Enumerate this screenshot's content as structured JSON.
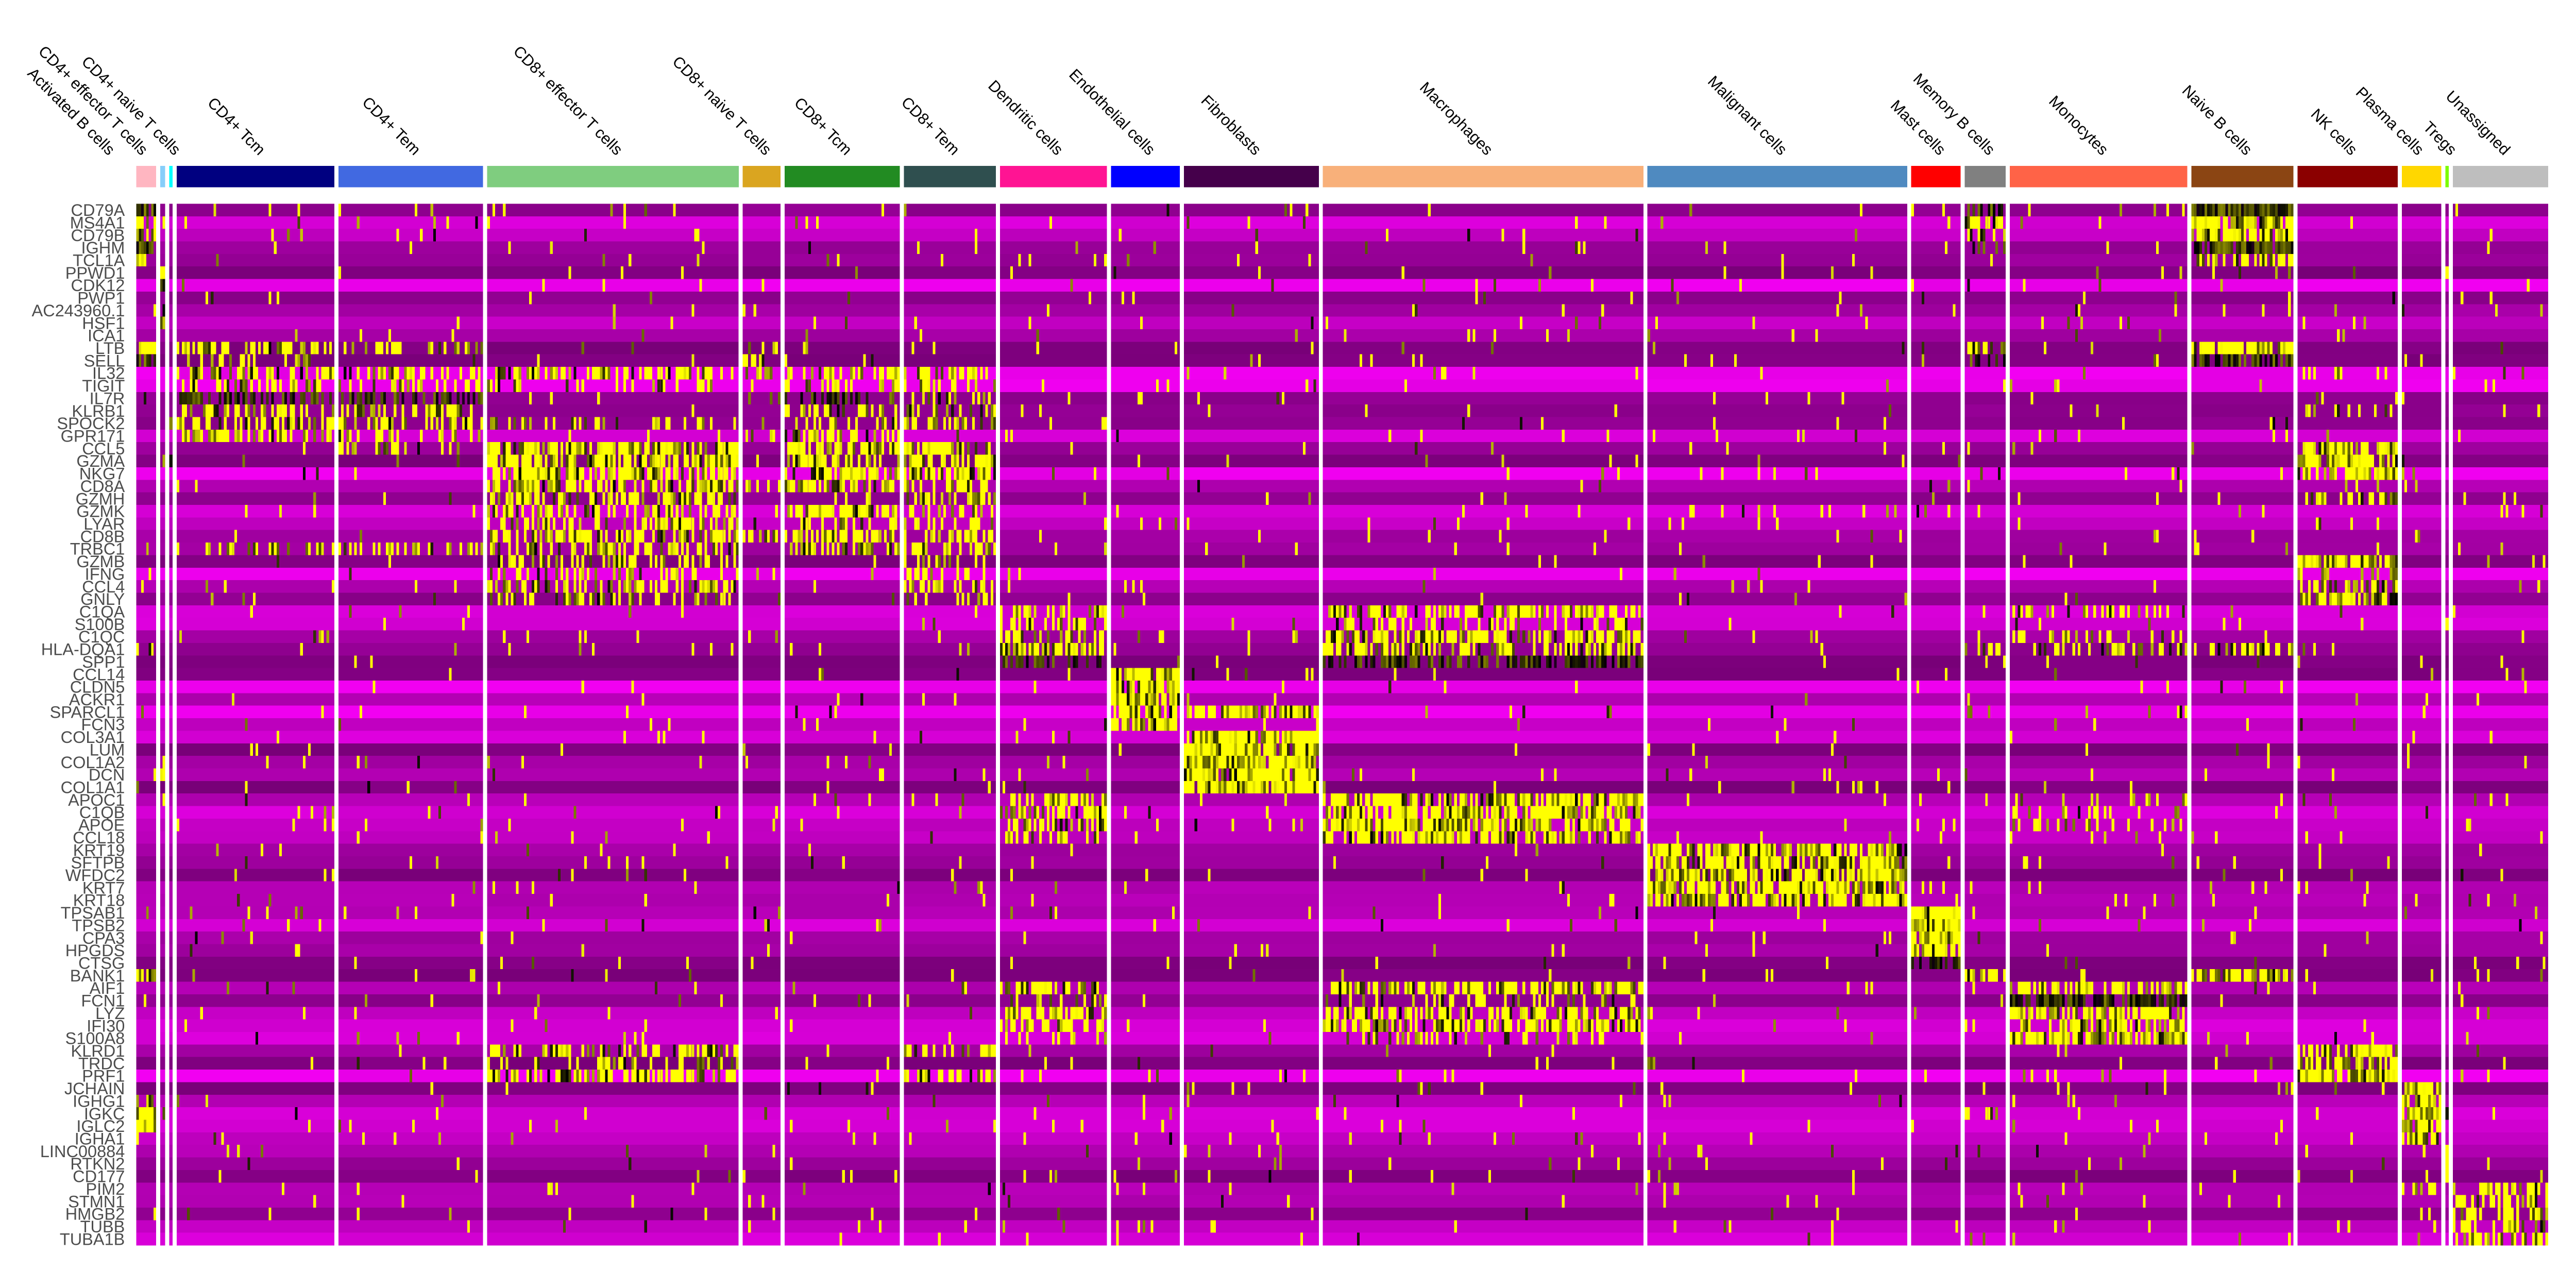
{
  "chart_data": {
    "type": "heatmap",
    "title": "",
    "color_scale": {
      "low": "#FF00FF",
      "mid": "#000000",
      "high": "#FFFF00",
      "range": [
        -2.5,
        2.5
      ]
    },
    "groups": [
      {
        "name": "Activated B cells",
        "color": "#FFB6C1",
        "relative_size": 12
      },
      {
        "name": "CD4+ effector T cells",
        "color": "#87CEFA",
        "relative_size": 3
      },
      {
        "name": "CD4+ naive T cells",
        "color": "#00FFFF",
        "relative_size": 2
      },
      {
        "name": "CD4+ Tcm",
        "color": "#000080",
        "relative_size": 96
      },
      {
        "name": "CD4+ Tem",
        "color": "#4169E1",
        "relative_size": 88
      },
      {
        "name": "CD8+ effector T cells",
        "color": "#7FCD7F",
        "relative_size": 153
      },
      {
        "name": "CD8+ naive T cells",
        "color": "#DAA520",
        "relative_size": 23
      },
      {
        "name": "CD8+ Tcm",
        "color": "#228B22",
        "relative_size": 70
      },
      {
        "name": "CD8+ Tem",
        "color": "#2F4F4F",
        "relative_size": 56
      },
      {
        "name": "Dendritic cells",
        "color": "#FF1493",
        "relative_size": 65
      },
      {
        "name": "Endothelial cells",
        "color": "#0000FF",
        "relative_size": 42
      },
      {
        "name": "Fibroblasts",
        "color": "#45004B",
        "relative_size": 82
      },
      {
        "name": "Macrophages",
        "color": "#F8B07A",
        "relative_size": 195
      },
      {
        "name": "Malignant cells",
        "color": "#4F8AC0",
        "relative_size": 158
      },
      {
        "name": "Mast cells",
        "color": "#FF0000",
        "relative_size": 30
      },
      {
        "name": "Memory B cells",
        "color": "#808080",
        "relative_size": 25
      },
      {
        "name": "Monocytes",
        "color": "#FF6347",
        "relative_size": 108
      },
      {
        "name": "Naive B cells",
        "color": "#8B4513",
        "relative_size": 62
      },
      {
        "name": "NK cells",
        "color": "#8B0000",
        "relative_size": 61
      },
      {
        "name": "Plasma cells",
        "color": "#FFD700",
        "relative_size": 24
      },
      {
        "name": "Tregs",
        "color": "#7CFC00",
        "relative_size": 2
      },
      {
        "name": "Unassigned",
        "color": "#BEBEBE",
        "relative_size": 58
      }
    ],
    "genes": [
      "CD79A",
      "MS4A1",
      "CD79B",
      "IGHM",
      "TCL1A",
      "PPWD1",
      "CDK12",
      "PWP1",
      "AC243960.1",
      "HSF1",
      "ICA1",
      "LTB",
      "SELL",
      "IL32",
      "TIGIT",
      "IL7R",
      "KLRB1",
      "SPOCK2",
      "GPR171",
      "CCL5",
      "GZMA",
      "NKG7",
      "CD8A",
      "GZMH",
      "GZMK",
      "LYAR",
      "CD8B",
      "TRBC1",
      "GZMB",
      "IFNG",
      "CCL4",
      "GNLY",
      "C1QA",
      "S100B",
      "C1QC",
      "HLA-DQA1",
      "SPP1",
      "CCL14",
      "CLDN5",
      "ACKR1",
      "SPARCL1",
      "FCN3",
      "COL3A1",
      "LUM",
      "COL1A2",
      "DCN",
      "COL1A1",
      "APOC1",
      "C1QB",
      "APOE",
      "CCL18",
      "KRT19",
      "SFTPB",
      "WFDC2",
      "KRT7",
      "KRT18",
      "TPSAB1",
      "TPSB2",
      "CPA3",
      "HPGDS",
      "CTSG",
      "BANK1",
      "AIF1",
      "FCN1",
      "LYZ",
      "IFI30",
      "S100A8",
      "KLRD1",
      "TRDC",
      "PRF1",
      "JCHAIN",
      "IGHG1",
      "IGKC",
      "IGLC2",
      "IGHA1",
      "LINC00884",
      "RTKN2",
      "CD177",
      "PIM2",
      "STMN1",
      "HMGB2",
      "TUBB",
      "TUBA1B"
    ],
    "high_expression_fraction": {
      "CD79A": {
        "Activated B cells": 0.9,
        "Memory B cells": 0.7,
        "Naive B cells": 0.9
      },
      "MS4A1": {
        "Activated B cells": 0.9,
        "Memory B cells": 0.7,
        "Naive B cells": 0.9
      },
      "CD79B": {
        "Activated B cells": 0.9,
        "Memory B cells": 0.6,
        "Naive B cells": 0.85
      },
      "IGHM": {
        "Activated B cells": 0.85,
        "Memory B cells": 0.5,
        "Naive B cells": 0.85
      },
      "TCL1A": {
        "Activated B cells": 0.7,
        "Naive B cells": 0.6
      },
      "PPWD1": {
        "CD4+ effector T cells": 0.8
      },
      "CDK12": {
        "CD4+ effector T cells": 0.8
      },
      "PWP1": {
        "CD4+ effector T cells": 0.8
      },
      "AC243960.1": {
        "CD4+ effector T cells": 0.7
      },
      "HSF1": {
        "CD4+ effector T cells": 0.7
      },
      "ICA1": {
        "CD4+ naive T cells": 0.6
      },
      "LTB": {
        "Activated B cells": 0.6,
        "CD4+ Tcm": 0.5,
        "CD4+ Tem": 0.3,
        "CD8+ naive T cells": 0.3,
        "Memory B cells": 0.6,
        "Naive B cells": 0.7
      },
      "SELL": {
        "Activated B cells": 0.6,
        "CD4+ Tcm": 0.3,
        "CD8+ naive T cells": 0.3,
        "Memory B cells": 0.4,
        "Naive B cells": 0.7
      },
      "IL32": {
        "CD4+ Tcm": 0.5,
        "CD4+ Tem": 0.5,
        "CD8+ effector T cells": 0.5,
        "CD8+ naive T cells": 0.4,
        "CD8+ Tcm": 0.5,
        "CD8+ Tem": 0.5,
        "NK cells": 0.3
      },
      "TIGIT": {
        "CD4+ Tcm": 0.4,
        "CD4+ Tem": 0.4,
        "CD8+ effector T cells": 0.3,
        "CD8+ Tcm": 0.3,
        "CD8+ Tem": 0.3,
        "Tregs": 0.5
      },
      "IL7R": {
        "CD4+ Tcm": 0.6,
        "CD4+ Tem": 0.6,
        "CD8+ naive T cells": 0.4,
        "CD8+ Tcm": 0.4,
        "CD8+ Tem": 0.3
      },
      "KLRB1": {
        "CD4+ Tcm": 0.4,
        "CD4+ Tem": 0.5,
        "CD8+ Tcm": 0.4,
        "CD8+ Tem": 0.4,
        "NK cells": 0.3
      },
      "SPOCK2": {
        "CD4+ Tcm": 0.5,
        "CD4+ Tem": 0.5,
        "CD8+ effector T cells": 0.3,
        "CD8+ Tcm": 0.4,
        "CD8+ Tem": 0.4
      },
      "GPR171": {
        "CD4+ Tcm": 0.5,
        "CD4+ Tem": 0.4,
        "CD8+ naive T cells": 0.3,
        "CD8+ Tcm": 0.4
      },
      "CCL5": {
        "CD4+ Tem": 0.3,
        "CD8+ effector T cells": 0.8,
        "CD8+ Tcm": 0.7,
        "CD8+ Tem": 0.7,
        "NK cells": 0.7
      },
      "GZMA": {
        "CD8+ effector T cells": 0.7,
        "CD8+ Tcm": 0.6,
        "CD8+ Tem": 0.7,
        "NK cells": 0.8
      },
      "NKG7": {
        "CD8+ effector T cells": 0.7,
        "CD8+ Tcm": 0.6,
        "CD8+ Tem": 0.7,
        "NK cells": 0.8
      },
      "CD8A": {
        "CD8+ effector T cells": 0.7,
        "CD8+ naive T cells": 0.5,
        "CD8+ Tcm": 0.7,
        "CD8+ Tem": 0.6
      },
      "GZMH": {
        "CD8+ effector T cells": 0.6,
        "CD8+ Tem": 0.5,
        "NK cells": 0.5
      },
      "GZMK": {
        "CD8+ effector T cells": 0.5,
        "CD8+ Tcm": 0.6,
        "CD8+ Tem": 0.4
      },
      "LYAR": {
        "CD8+ effector T cells": 0.4,
        "CD8+ Tcm": 0.4,
        "CD8+ Tem": 0.3,
        "NK cells": 0.3
      },
      "CD8B": {
        "CD8+ effector T cells": 0.6,
        "CD8+ naive T cells": 0.5,
        "CD8+ Tcm": 0.6,
        "CD8+ Tem": 0.5
      },
      "TRBC1": {
        "CD4+ Tcm": 0.3,
        "CD4+ Tem": 0.4,
        "CD8+ effector T cells": 0.5,
        "CD8+ Tcm": 0.5,
        "CD8+ Tem": 0.5
      },
      "GZMB": {
        "CD8+ effector T cells": 0.4,
        "CD8+ Tem": 0.3,
        "NK cells": 0.7
      },
      "IFNG": {
        "CD8+ effector T cells": 0.4,
        "CD8+ Tem": 0.4,
        "NK cells": 0.3
      },
      "CCL4": {
        "CD8+ effector T cells": 0.6,
        "CD8+ Tem": 0.5,
        "NK cells": 0.6
      },
      "GNLY": {
        "CD8+ effector T cells": 0.4,
        "CD8+ Tem": 0.3,
        "NK cells": 0.8
      },
      "C1QA": {
        "Dendritic cells": 0.5,
        "Macrophages": 0.7,
        "Monocytes": 0.3
      },
      "S100B": {
        "Dendritic cells": 0.5,
        "Macrophages": 0.3
      },
      "C1QC": {
        "Dendritic cells": 0.5,
        "Macrophages": 0.7,
        "Monocytes": 0.3
      },
      "HLA-DQA1": {
        "Activated B cells": 0.6,
        "Dendritic cells": 0.7,
        "Macrophages": 0.6,
        "Memory B cells": 0.5,
        "Monocytes": 0.4,
        "Naive B cells": 0.5
      },
      "SPP1": {
        "Dendritic cells": 0.4,
        "Macrophages": 0.6
      },
      "CCL14": {
        "Endothelial cells": 0.9
      },
      "CLDN5": {
        "Endothelial cells": 0.9
      },
      "ACKR1": {
        "Endothelial cells": 0.9
      },
      "SPARCL1": {
        "Endothelial cells": 0.9,
        "Fibroblasts": 0.8
      },
      "FCN3": {
        "Endothelial cells": 0.8
      },
      "COL3A1": {
        "Fibroblasts": 0.95
      },
      "LUM": {
        "Fibroblasts": 0.95
      },
      "COL1A2": {
        "Fibroblasts": 0.95
      },
      "DCN": {
        "Fibroblasts": 0.95
      },
      "COL1A1": {
        "Fibroblasts": 0.95
      },
      "APOC1": {
        "Dendritic cells": 0.5,
        "Macrophages": 0.8,
        "Monocytes": 0.2
      },
      "C1QB": {
        "Dendritic cells": 0.5,
        "Macrophages": 0.8,
        "Monocytes": 0.2
      },
      "APOE": {
        "Dendritic cells": 0.5,
        "Macrophages": 0.8,
        "Monocytes": 0.2
      },
      "CCL18": {
        "Dendritic cells": 0.4,
        "Macrophages": 0.7
      },
      "KRT19": {
        "Malignant cells": 0.85
      },
      "SFTPB": {
        "Malignant cells": 0.85
      },
      "WFDC2": {
        "Malignant cells": 0.85
      },
      "KRT7": {
        "Malignant cells": 0.85
      },
      "KRT18": {
        "Malignant cells": 0.85
      },
      "TPSAB1": {
        "Mast cells": 0.95
      },
      "TPSB2": {
        "Mast cells": 0.95
      },
      "CPA3": {
        "Mast cells": 0.95
      },
      "HPGDS": {
        "Mast cells": 0.9
      },
      "CTSG": {
        "Mast cells": 0.6
      },
      "BANK1": {
        "Activated B cells": 0.7,
        "Memory B cells": 0.6,
        "Naive B cells": 0.7
      },
      "AIF1": {
        "Dendritic cells": 0.6,
        "Macrophages": 0.7,
        "Monocytes": 0.7
      },
      "FCN1": {
        "Dendritic cells": 0.3,
        "Macrophages": 0.3,
        "Monocytes": 0.8
      },
      "LYZ": {
        "Dendritic cells": 0.6,
        "Macrophages": 0.6,
        "Monocytes": 0.8
      },
      "IFI30": {
        "Dendritic cells": 0.6,
        "Macrophages": 0.7,
        "Monocytes": 0.6
      },
      "S100A8": {
        "Dendritic cells": 0.3,
        "Macrophages": 0.3,
        "Monocytes": 0.8
      },
      "KLRD1": {
        "CD8+ effector T cells": 0.5,
        "CD8+ Tem": 0.4,
        "NK cells": 0.8
      },
      "TRDC": {
        "CD8+ effector T cells": 0.3,
        "NK cells": 0.7
      },
      "PRF1": {
        "CD8+ effector T cells": 0.6,
        "CD8+ Tem": 0.5,
        "NK cells": 0.8
      },
      "JCHAIN": {
        "Plasma cells": 0.95
      },
      "IGHG1": {
        "Activated B cells": 0.5,
        "Plasma cells": 0.7
      },
      "IGKC": {
        "Activated B cells": 0.7,
        "Memory B cells": 0.5,
        "Plasma cells": 0.9
      },
      "IGLC2": {
        "Activated B cells": 0.8,
        "Plasma cells": 0.8
      },
      "IGHA1": {
        "Activated B cells": 0.4,
        "Plasma cells": 0.6
      },
      "LINC00884": {
        "Tregs": 0.9
      },
      "RTKN2": {
        "Tregs": 0.9
      },
      "CD177": {
        "Tregs": 0.9
      },
      "PIM2": {
        "Plasma cells": 0.6,
        "Unassigned": 0.5
      },
      "STMN1": {
        "Unassigned": 0.6
      },
      "HMGB2": {
        "Unassigned": 0.6
      },
      "TUBB": {
        "Unassigned": 0.6
      },
      "TUBA1B": {
        "Unassigned": 0.6
      }
    }
  }
}
